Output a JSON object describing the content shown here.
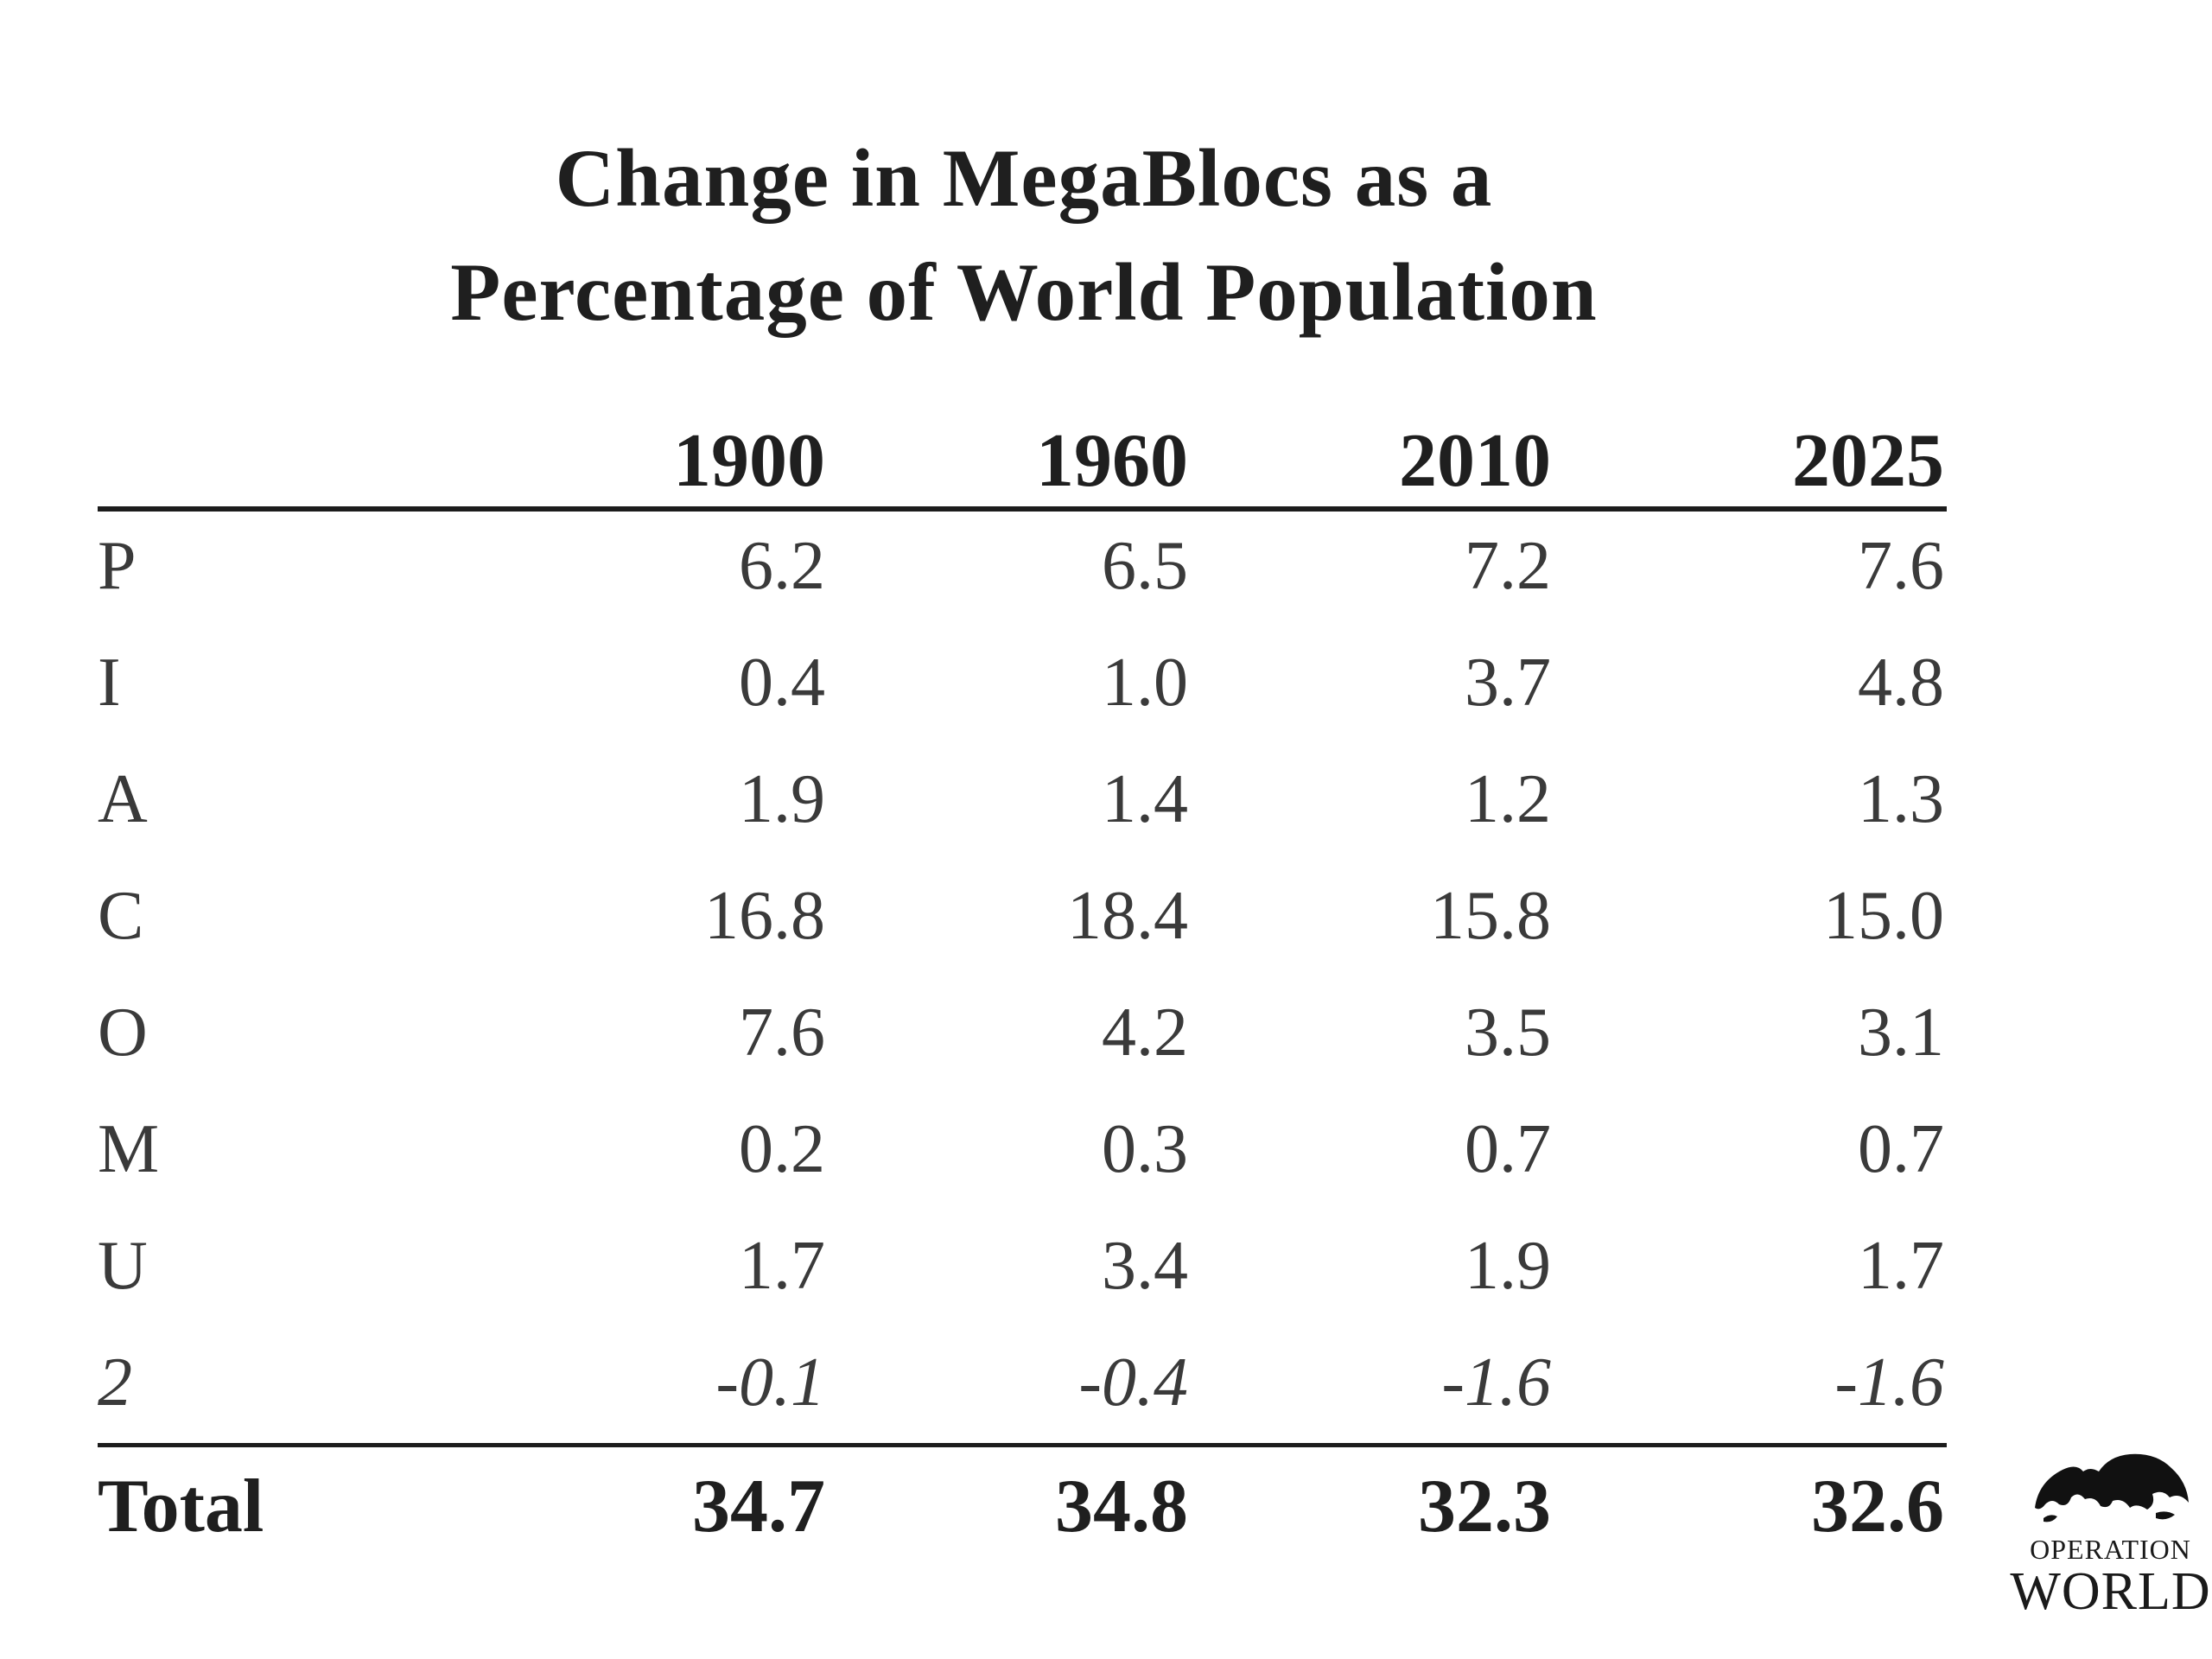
{
  "chart_data": {
    "type": "table",
    "title": "Change in MegaBlocs as a Percentage of World Population",
    "title_lines": [
      "Change in MegaBlocs as a",
      "Percentage of World Population"
    ],
    "columns": [
      "1900",
      "1960",
      "2010",
      "2025"
    ],
    "rows": [
      {
        "label": "P",
        "values": [
          "6.2",
          "6.5",
          "7.2",
          "7.6"
        ]
      },
      {
        "label": "I",
        "values": [
          "0.4",
          "1.0",
          "3.7",
          "4.8"
        ]
      },
      {
        "label": "A",
        "values": [
          "1.9",
          "1.4",
          "1.2",
          "1.3"
        ]
      },
      {
        "label": "C",
        "values": [
          "16.8",
          "18.4",
          "15.8",
          "15.0"
        ]
      },
      {
        "label": "O",
        "values": [
          "7.6",
          "4.2",
          "3.5",
          "3.1"
        ]
      },
      {
        "label": "M",
        "values": [
          "0.2",
          "0.3",
          "0.7",
          "0.7"
        ]
      },
      {
        "label": "U",
        "values": [
          "1.7",
          "3.4",
          "1.9",
          "1.7"
        ]
      },
      {
        "label": "2",
        "values": [
          "-0.1",
          "-0.4",
          "-1.6",
          "-1.6"
        ],
        "italic": true
      }
    ],
    "total": {
      "label": "Total",
      "values": [
        "34.7",
        "34.8",
        "32.3",
        "32.6"
      ]
    }
  },
  "logo": {
    "line1": "OPERATION",
    "line2": "WORLD",
    "icon": "globe-silhouette-icon"
  }
}
